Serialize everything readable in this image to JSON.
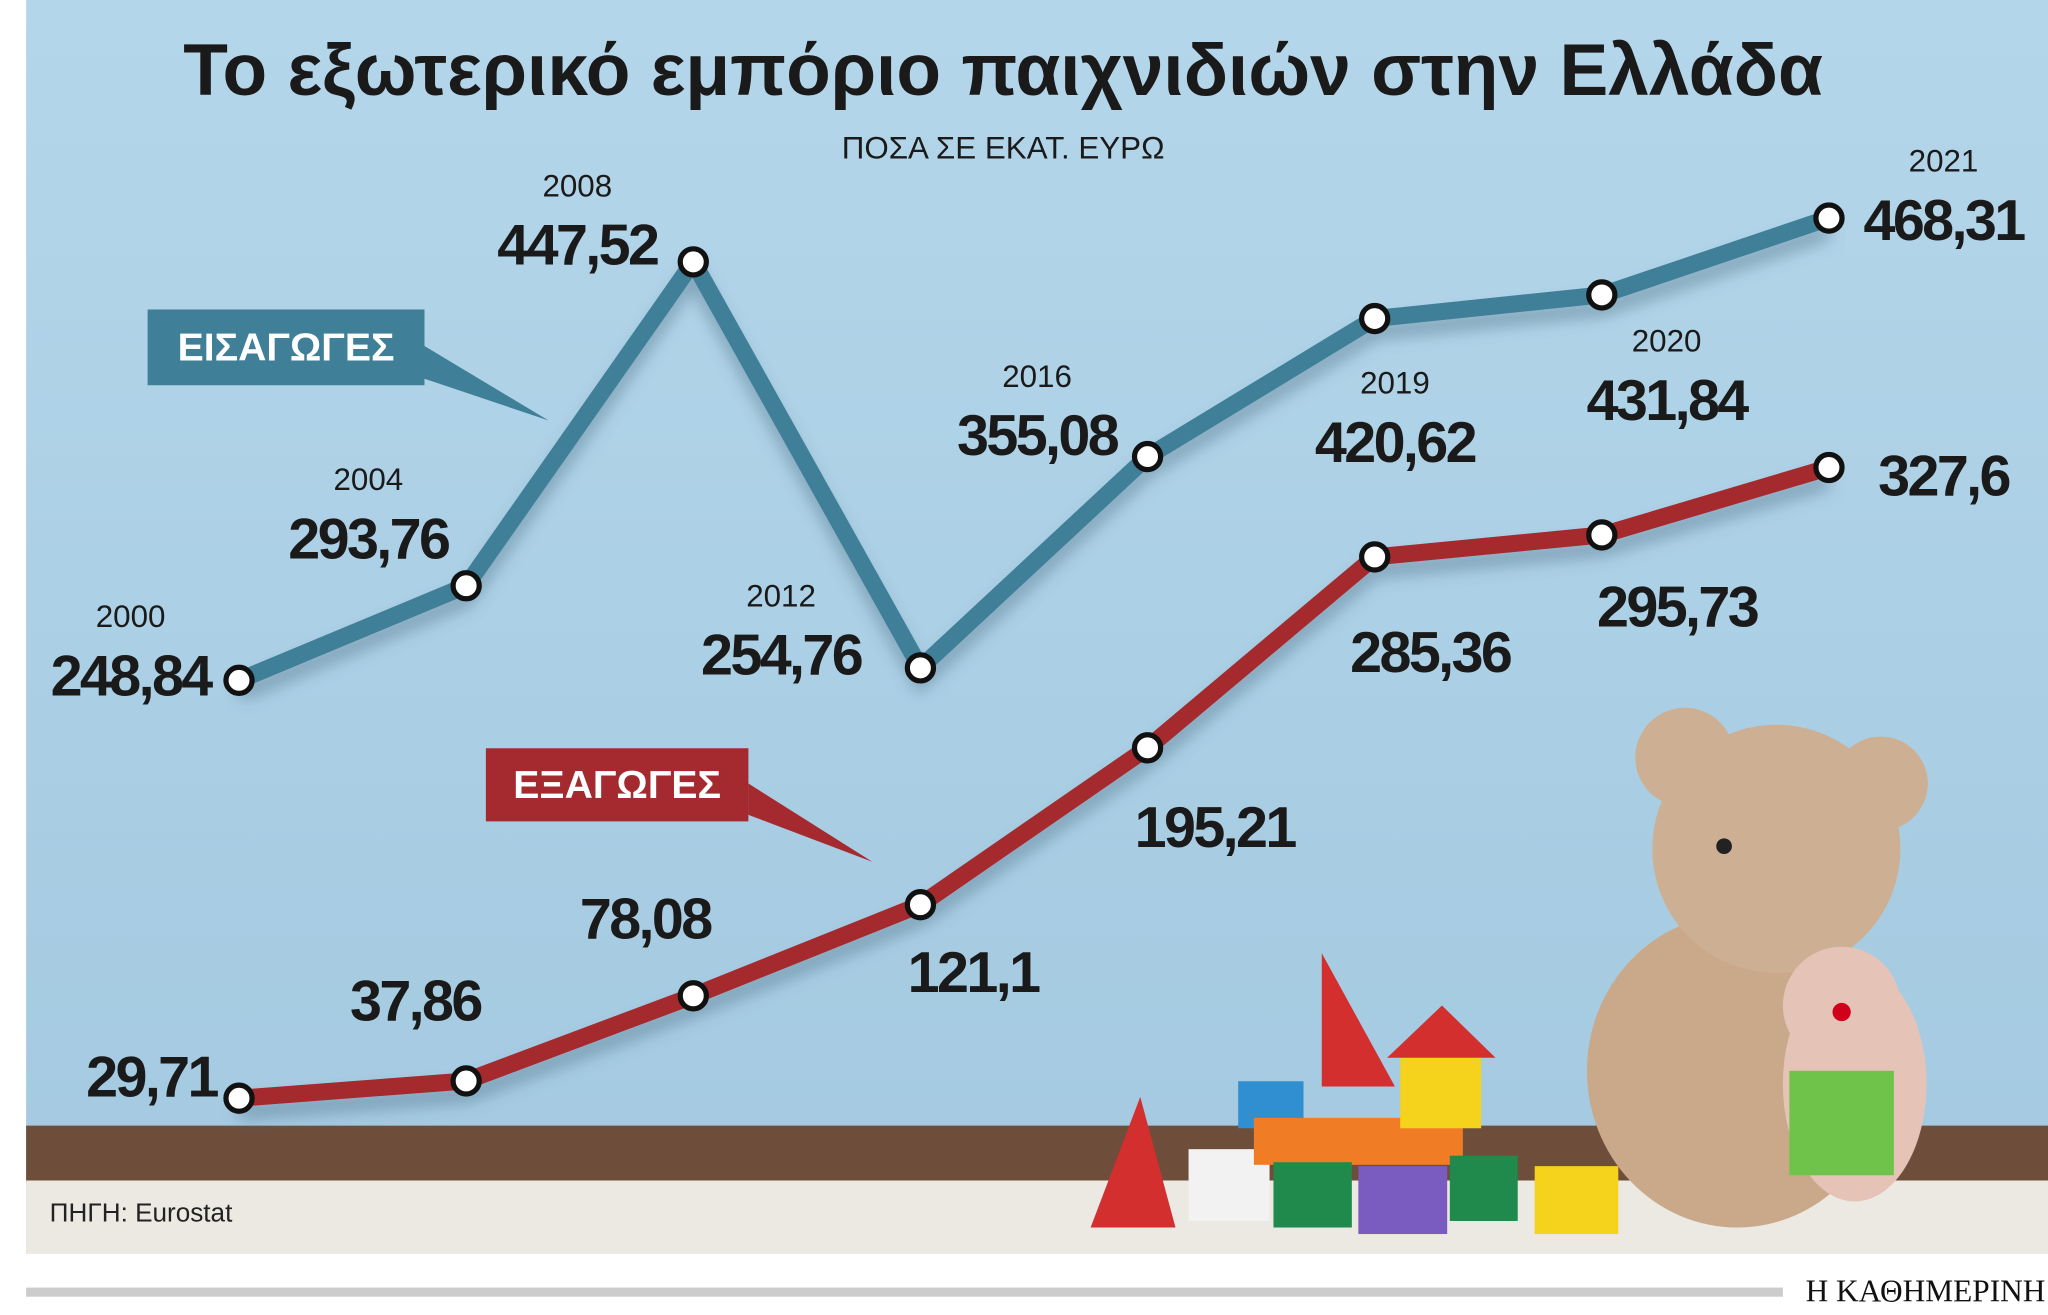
{
  "chart_data": {
    "type": "line",
    "title": "Το εξωτερικό εμπόριο παιχνιδιών στην Ελλάδα",
    "subtitle": "ΠΟΣΑ ΣΕ ΕΚΑΤ. ΕΥΡΩ",
    "categories": [
      "2000",
      "2004",
      "2008",
      "2012",
      "2016",
      "2019",
      "2020",
      "2021"
    ],
    "series": [
      {
        "name": "ΕΙΣΑΓΩΓΕΣ",
        "color": "#3f7f98",
        "values": [
          248.84,
          293.76,
          447.52,
          254.76,
          355.08,
          420.62,
          431.84,
          468.31
        ],
        "value_labels": [
          "248,84",
          "293,76",
          "447,52",
          "254,76",
          "355,08",
          "420,62",
          "431,84",
          "468,31"
        ]
      },
      {
        "name": "ΕΞΑΓΩΓΕΣ",
        "color": "#a52a2f",
        "values": [
          29.71,
          37.86,
          78.08,
          121.1,
          195.21,
          285.36,
          295.73,
          327.6
        ],
        "value_labels": [
          "29,71",
          "37,86",
          "78,08",
          "121,1",
          "195,21",
          "285,36",
          "295,73",
          "327,6"
        ]
      }
    ],
    "source": "ΠΗΓΗ: Eurostat",
    "brand": "Η ΚΑΘΗΜΕΡΙΝΗ"
  }
}
